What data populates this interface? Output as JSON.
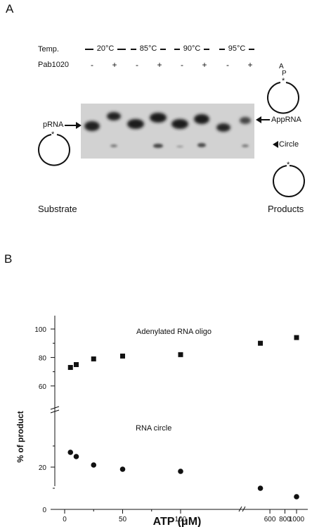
{
  "panel_a": {
    "label": "A",
    "temp_label": "Temp.",
    "protein_label": "Pab1020",
    "temps": [
      "20°C",
      "85°C",
      "90°C",
      "95°C"
    ],
    "lanes": [
      "-",
      "+",
      "-",
      "+",
      "-",
      "+",
      "-",
      "+"
    ],
    "substrate_band": "pRNA",
    "adenylated_band": "AppRNA",
    "circle_band": "Circle",
    "substrate_caption": "Substrate",
    "products_caption": "Products",
    "adenylated_icon_text": "A",
    "adenylated_icon_p": "P",
    "star": "*"
  },
  "panel_b": {
    "label": "B"
  },
  "chart_data": {
    "type": "scatter",
    "xlabel": "ATP (μM)",
    "ylabel": "% of product",
    "x_axis_break": true,
    "y_axis_break": true,
    "x_ticks_left": [
      "0",
      "50",
      "100"
    ],
    "x_ticks_right": [
      "600",
      "800",
      "1000"
    ],
    "y_ticks_lower": [
      "0",
      "20"
    ],
    "y_ticks_upper": [
      "60",
      "80",
      "100"
    ],
    "series": [
      {
        "name": "Adenylated RNA oligo",
        "marker": "square",
        "x": [
          5,
          10,
          25,
          50,
          100,
          500,
          1000
        ],
        "y": [
          73,
          75,
          79,
          81,
          82,
          90,
          94
        ]
      },
      {
        "name": "RNA circle",
        "marker": "circle",
        "x": [
          5,
          10,
          25,
          50,
          100,
          500,
          1000
        ],
        "y": [
          27,
          25,
          21,
          19,
          18,
          10,
          6
        ]
      }
    ]
  }
}
